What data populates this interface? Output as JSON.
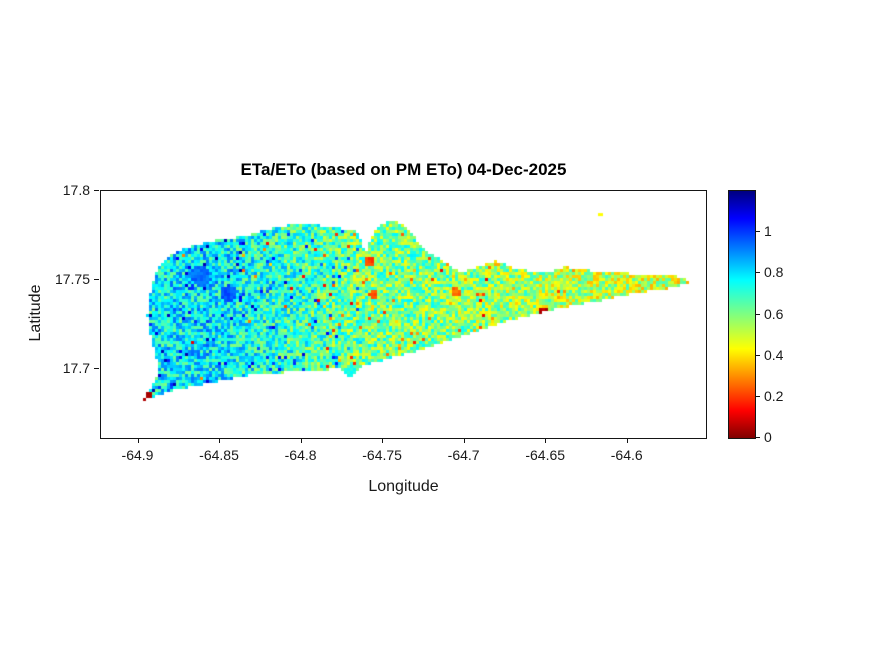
{
  "chart_data": {
    "type": "heatmap",
    "title": "ETa/ETo (based on PM ETo) 04-Dec-2025",
    "xlabel": "Longitude",
    "ylabel": "Latitude",
    "xlim": [
      -64.923,
      -64.552
    ],
    "ylim": [
      17.661,
      17.8
    ],
    "grid": false,
    "xticks": [
      {
        "value": -64.9,
        "label": "-64.9"
      },
      {
        "value": -64.85,
        "label": "-64.85"
      },
      {
        "value": -64.8,
        "label": "-64.8"
      },
      {
        "value": -64.75,
        "label": "-64.75"
      },
      {
        "value": -64.7,
        "label": "-64.7"
      },
      {
        "value": -64.65,
        "label": "-64.65"
      },
      {
        "value": -64.6,
        "label": "-64.6"
      }
    ],
    "yticks": [
      {
        "value": 17.8,
        "label": "17.8"
      },
      {
        "value": 17.75,
        "label": "17.75"
      },
      {
        "value": 17.7,
        "label": "17.7"
      }
    ],
    "colorbar": {
      "position": "right",
      "colormap": "jet-reversed (red low, blue high)",
      "vmin": 0,
      "vmax": 1.2,
      "ticks": [
        {
          "value": 1,
          "label": "1"
        },
        {
          "value": 0.8,
          "label": "0.8"
        },
        {
          "value": 0.6,
          "label": "0.6"
        },
        {
          "value": 0.4,
          "label": "0.4"
        },
        {
          "value": 0.2,
          "label": "0.2"
        },
        {
          "value": 0,
          "label": "0"
        }
      ],
      "stops": [
        {
          "pos": 0,
          "color": "#800000"
        },
        {
          "pos": 0.111,
          "color": "#ff0000"
        },
        {
          "pos": 0.361,
          "color": "#ffff00"
        },
        {
          "pos": 0.639,
          "color": "#00ffff"
        },
        {
          "pos": 0.889,
          "color": "#0000ff"
        },
        {
          "pos": 1,
          "color": "#000080"
        }
      ]
    },
    "island": {
      "name": "st-croix-landmass",
      "outline": [
        [
          -64.8933,
          17.741
        ],
        [
          -64.889,
          17.7551
        ],
        [
          -64.881,
          17.7635
        ],
        [
          -64.8706,
          17.768
        ],
        [
          -64.8553,
          17.7719
        ],
        [
          -64.8369,
          17.7742
        ],
        [
          -64.8186,
          17.7787
        ],
        [
          -64.8002,
          17.782
        ],
        [
          -64.7818,
          17.7798
        ],
        [
          -64.7665,
          17.7775
        ],
        [
          -64.7604,
          17.7652
        ],
        [
          -64.7561,
          17.7764
        ],
        [
          -64.7481,
          17.7831
        ],
        [
          -64.739,
          17.782
        ],
        [
          -64.7298,
          17.773
        ],
        [
          -64.7218,
          17.7652
        ],
        [
          -64.7114,
          17.7596
        ],
        [
          -64.7022,
          17.7539
        ],
        [
          -64.693,
          17.7573
        ],
        [
          -64.6808,
          17.7607
        ],
        [
          -64.6685,
          17.7562
        ],
        [
          -64.6502,
          17.7539
        ],
        [
          -64.6379,
          17.7573
        ],
        [
          -64.6226,
          17.7551
        ],
        [
          -64.6042,
          17.7539
        ],
        [
          -64.5859,
          17.7528
        ],
        [
          -64.5657,
          17.7517
        ],
        [
          -64.5614,
          17.7483
        ],
        [
          -64.5767,
          17.7449
        ],
        [
          -64.5951,
          17.7427
        ],
        [
          -64.6165,
          17.7382
        ],
        [
          -64.6379,
          17.7348
        ],
        [
          -64.6593,
          17.7303
        ],
        [
          -64.6777,
          17.7258
        ],
        [
          -64.6961,
          17.7202
        ],
        [
          -64.7145,
          17.7146
        ],
        [
          -64.7328,
          17.709
        ],
        [
          -64.7512,
          17.7045
        ],
        [
          -64.7634,
          17.7011
        ],
        [
          -64.7696,
          17.6944
        ],
        [
          -64.7757,
          17.7
        ],
        [
          -64.7941,
          17.6989
        ],
        [
          -64.8125,
          17.6978
        ],
        [
          -64.8308,
          17.6966
        ],
        [
          -64.8492,
          17.6933
        ],
        [
          -64.8645,
          17.6904
        ],
        [
          -64.8798,
          17.6876
        ],
        [
          -64.8908,
          17.6843
        ],
        [
          -64.8982,
          17.682
        ],
        [
          -64.892,
          17.6888
        ],
        [
          -64.8871,
          17.6989
        ],
        [
          -64.892,
          17.7157
        ],
        [
          -64.8945,
          17.7298
        ]
      ]
    },
    "value_field": {
      "description": "ETa/ETo ratio, interpolated west-to-east with speckle noise",
      "anchors": [
        [
          -64.92,
          0.74
        ],
        [
          -64.86,
          0.78
        ],
        [
          -64.81,
          0.7
        ],
        [
          -64.77,
          0.62
        ],
        [
          -64.72,
          0.6
        ],
        [
          -64.66,
          0.55
        ],
        [
          -64.6,
          0.52
        ],
        [
          -64.55,
          0.5
        ]
      ],
      "noise_amp": 0.32,
      "low_speckle_prob": 0.028,
      "high_patch_prob": 0.05
    },
    "hotspots": [
      {
        "lon": -64.896,
        "lat": 17.6835,
        "r": 0.0045,
        "value": 0.06
      },
      {
        "lon": -64.651,
        "lat": 17.731,
        "r": 0.0035,
        "value": 0.07
      },
      {
        "lon": -64.758,
        "lat": 17.76,
        "r": 0.003,
        "value": 0.22
      },
      {
        "lon": -64.756,
        "lat": 17.742,
        "r": 0.0025,
        "value": 0.25
      },
      {
        "lon": -64.705,
        "lat": 17.743,
        "r": 0.0025,
        "value": 0.28
      },
      {
        "lon": -64.769,
        "lat": 17.696,
        "r": 0.0045,
        "value": 0.72
      },
      {
        "lon": -64.862,
        "lat": 17.752,
        "r": 0.006,
        "value": 0.92
      },
      {
        "lon": -64.845,
        "lat": 17.742,
        "r": 0.005,
        "value": 0.95
      }
    ],
    "specks": [
      {
        "lon": -64.617,
        "lat": 17.787,
        "value": 0.45
      }
    ]
  }
}
